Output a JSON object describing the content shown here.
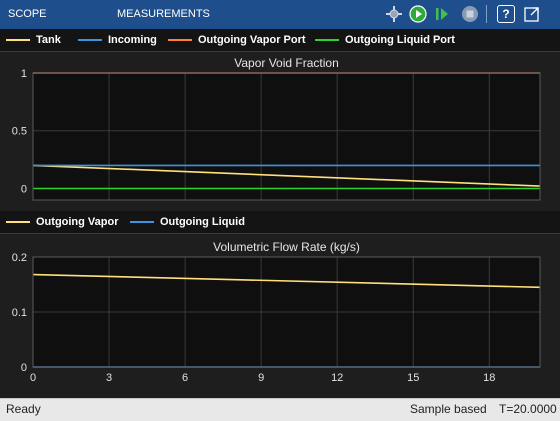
{
  "toolstrip": {
    "tabs": [
      {
        "label": "SCOPE"
      },
      {
        "label": "MEASUREMENTS"
      }
    ],
    "buttons": {
      "snapshot_icon": "highlight-simulink-block-icon",
      "run_icon": "run-icon",
      "step_icon": "step-forward-icon",
      "stop_icon": "stop-icon",
      "help_label": "?",
      "undock_icon": "undock-icon"
    }
  },
  "colors": {
    "toolstrip_bg": "#1f4e8c",
    "plot_bg": "#0f0f0f",
    "yellow": "#ffe07a",
    "blue": "#3d95e0",
    "orange": "#ff7f3c",
    "green": "#2fd12f"
  },
  "legend_top": {
    "items": [
      {
        "label": "Tank",
        "color": "#ffe07a"
      },
      {
        "label": "Incoming",
        "color": "#3d95e0"
      },
      {
        "label": "Outgoing Vapor Port",
        "color": "#ff7f3c"
      },
      {
        "label": "Outgoing Liquid Port",
        "color": "#2fd12f"
      }
    ]
  },
  "legend_bottom": {
    "items": [
      {
        "label": "Outgoing Vapor",
        "color": "#ffe07a"
      },
      {
        "label": "Outgoing Liquid",
        "color": "#3d95e0"
      }
    ]
  },
  "chart_data": [
    {
      "type": "line",
      "title": "Vapor Void Fraction",
      "xlim": [
        0,
        20
      ],
      "ylim": [
        -0.1,
        1
      ],
      "yticks": [
        0,
        0.5,
        1
      ],
      "grid": true,
      "legend": "top",
      "series": [
        {
          "name": "Tank",
          "color": "#ffe07a",
          "x": [
            0,
            20
          ],
          "y": [
            0.2,
            0.02
          ]
        },
        {
          "name": "Incoming",
          "color": "#3d95e0",
          "x": [
            0,
            20
          ],
          "y": [
            0.2,
            0.2
          ]
        },
        {
          "name": "Outgoing Vapor Port",
          "color": "#ff7f3c",
          "x": [
            0,
            20
          ],
          "y": [
            1,
            1
          ]
        },
        {
          "name": "Outgoing Liquid Port",
          "color": "#2fd12f",
          "x": [
            0,
            20
          ],
          "y": [
            0,
            0
          ]
        }
      ]
    },
    {
      "type": "line",
      "title": "Volumetric Flow Rate (kg/s)",
      "xlim": [
        0,
        20
      ],
      "ylim": [
        0,
        0.2
      ],
      "xticks": [
        0,
        3,
        6,
        9,
        12,
        15,
        18
      ],
      "yticks": [
        0,
        0.1,
        0.2
      ],
      "grid": true,
      "legend": "top",
      "series": [
        {
          "name": "Outgoing Vapor",
          "color": "#ffe07a",
          "x": [
            0,
            20
          ],
          "y": [
            0.168,
            0.145
          ]
        },
        {
          "name": "Outgoing Liquid",
          "color": "#3d95e0",
          "x": [
            0,
            20
          ],
          "y": [
            0,
            0
          ]
        }
      ]
    }
  ],
  "status": {
    "left": "Ready",
    "mode": "Sample based",
    "time": "T=20.0000"
  }
}
